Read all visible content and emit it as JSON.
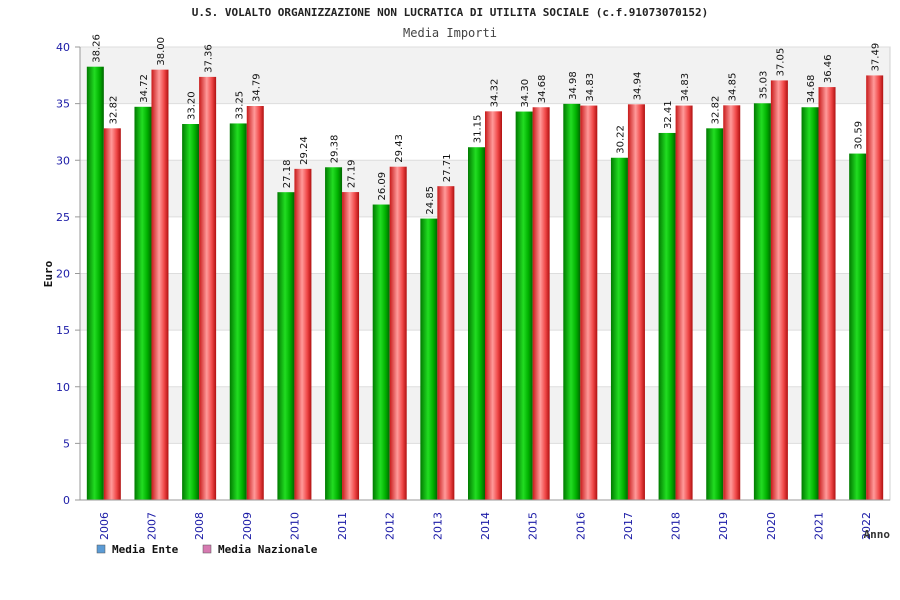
{
  "chart_data": {
    "type": "bar",
    "title": "U.S. VOLALTO ORGANIZZAZIONE NON LUCRATICA DI UTILITA SOCIALE (c.f.91073070152)",
    "subtitle": "Media Importi",
    "xlabel": "Anno",
    "ylabel": "Euro",
    "ylim": [
      0,
      40
    ],
    "yticks": [
      0,
      5,
      10,
      15,
      20,
      25,
      30,
      35,
      40
    ],
    "grid": true,
    "legend_position": "bottom-left",
    "categories": [
      "2006",
      "2007",
      "2008",
      "2009",
      "2010",
      "2011",
      "2012",
      "2013",
      "2014",
      "2015",
      "2016",
      "2017",
      "2018",
      "2019",
      "2020",
      "2021",
      "2022"
    ],
    "series": [
      {
        "name": "Media Ente",
        "color": "#00b400",
        "legend_color": "#5b9bd5",
        "values": [
          38.26,
          34.72,
          33.2,
          33.25,
          27.18,
          29.38,
          26.09,
          24.85,
          31.15,
          34.3,
          34.98,
          30.22,
          32.41,
          32.82,
          35.03,
          34.68,
          30.59
        ],
        "labels": [
          "38.26",
          "34.72",
          "33.20",
          "33.25",
          "27.18",
          "29.38",
          "26.09",
          "24.85",
          "31.15",
          "34.30",
          "34.98",
          "30.22",
          "32.41",
          "32.82",
          "35.03",
          "34.68",
          "30.59"
        ]
      },
      {
        "name": "Media Nazionale",
        "color": "#e62828",
        "legend_color": "#d67ab1",
        "values": [
          32.82,
          38.0,
          37.36,
          34.79,
          29.24,
          27.19,
          29.43,
          27.71,
          34.32,
          34.68,
          34.83,
          34.94,
          34.83,
          34.85,
          37.05,
          36.46,
          37.49
        ],
        "labels": [
          "32.82",
          "38.00",
          "37.36",
          "34.79",
          "29.24",
          "27.19",
          "29.43",
          "27.71",
          "34.32",
          "34.68",
          "34.83",
          "34.94",
          "34.83",
          "34.85",
          "37.05",
          "36.46",
          "37.49"
        ]
      }
    ]
  }
}
